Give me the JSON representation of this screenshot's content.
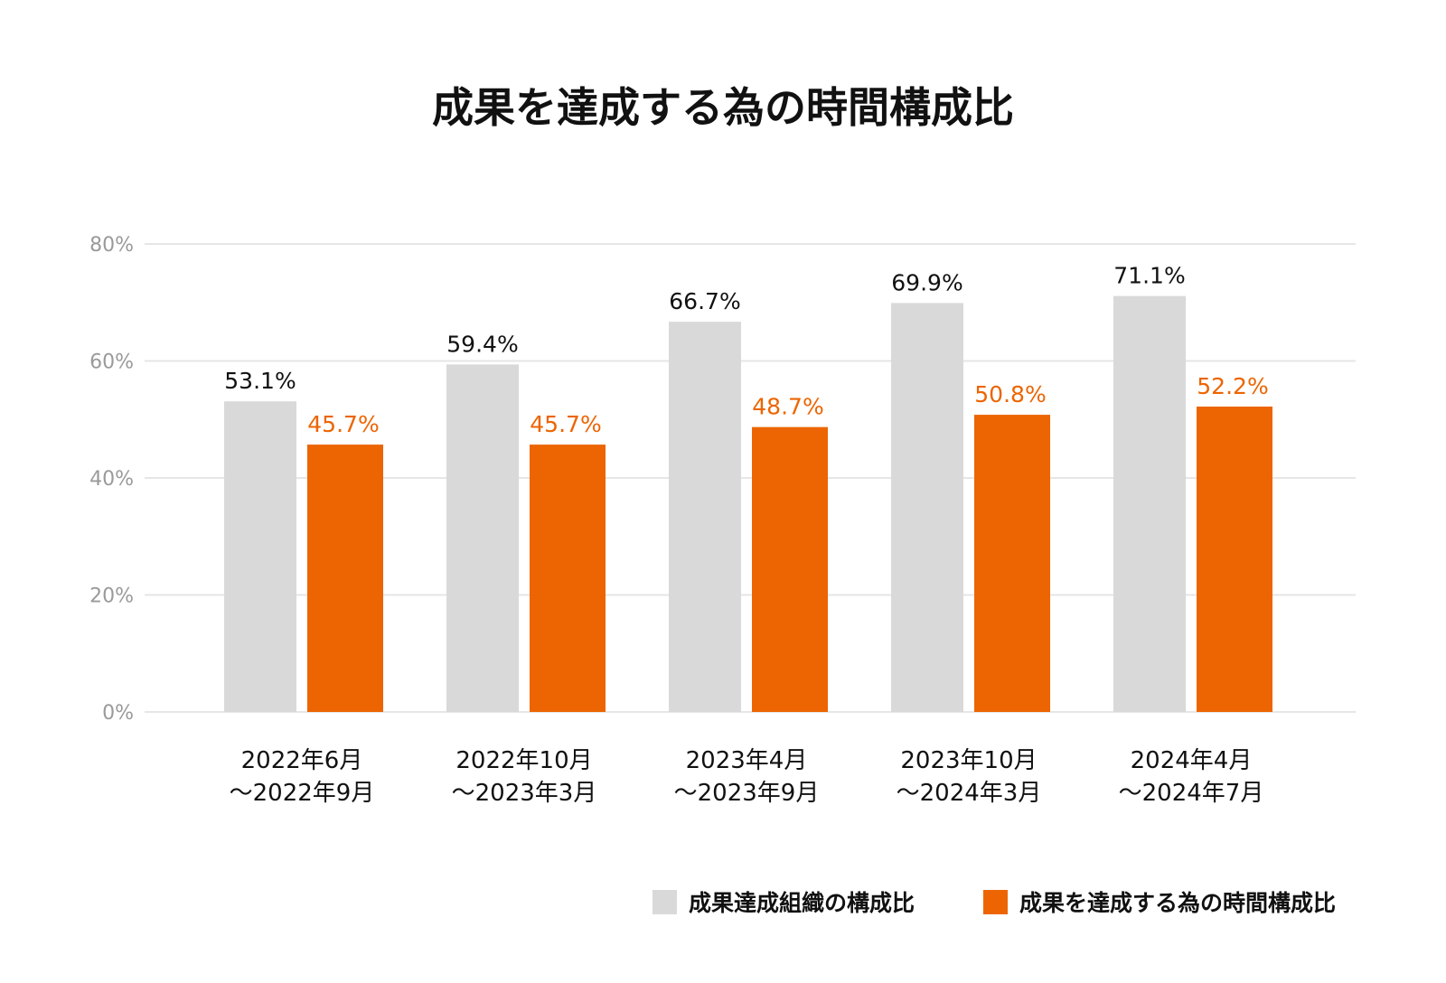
{
  "chart_data": {
    "type": "bar",
    "title": "成果を達成する為の時間構成比",
    "categories": [
      [
        "2022年6月",
        "～2022年9月"
      ],
      [
        "2022年10月",
        "～2023年3月"
      ],
      [
        "2023年4月",
        "～2023年9月"
      ],
      [
        "2023年10月",
        "～2024年3月"
      ],
      [
        "2024年4月",
        "～2024年7月"
      ]
    ],
    "series": [
      {
        "name": "成果達成組織の構成比",
        "color": "#d9d9d9",
        "label_color": "#111111",
        "values": [
          53.1,
          59.4,
          66.7,
          69.9,
          71.1
        ],
        "labels": [
          "53.1%",
          "59.4%",
          "66.7%",
          "69.9%",
          "71.1%"
        ]
      },
      {
        "name": "成果を達成する為の時間構成比",
        "color": "#ec6502",
        "label_color": "#ec6502",
        "values": [
          45.7,
          45.7,
          48.7,
          50.8,
          52.2
        ],
        "labels": [
          "45.7%",
          "45.7%",
          "48.7%",
          "50.8%",
          "52.2%"
        ]
      }
    ],
    "ylim": [
      0,
      80
    ],
    "yticks": [
      0,
      20,
      40,
      60,
      80
    ],
    "ytick_labels": [
      "0%",
      "20%",
      "40%",
      "60%",
      "80%"
    ],
    "grid": true,
    "gridline_color": "#e6e6e6",
    "xlabel": "",
    "ylabel": "",
    "legend_position": "bottom-right"
  }
}
